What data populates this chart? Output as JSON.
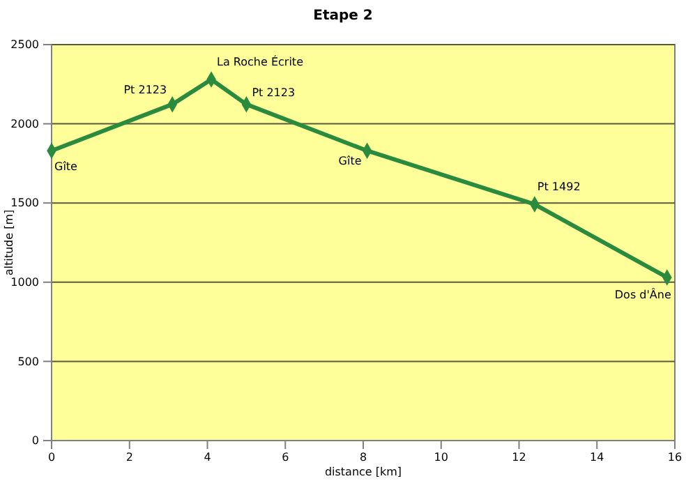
{
  "chart_data": {
    "type": "line",
    "title": "Etape 2",
    "xlabel": "distance [km]",
    "ylabel": "altitude [m]",
    "x": [
      0,
      3.1,
      4.1,
      5.0,
      8.1,
      12.4,
      15.8
    ],
    "series": [
      {
        "color": "#2a8a3e",
        "values": [
          1830,
          2123,
          2280,
          2123,
          1830,
          1492,
          1030
        ]
      }
    ],
    "xlim": [
      0,
      16
    ],
    "xticks": [
      0,
      2,
      4,
      6,
      8,
      10,
      12,
      14,
      16
    ],
    "ylim": [
      0,
      2500
    ],
    "yticks": [
      0,
      500,
      1000,
      1500,
      2000,
      2500
    ],
    "grid": "y",
    "marker": "diamond",
    "line_style": "solid",
    "annotations": [
      {
        "text": "Gîte",
        "x": 0,
        "y": 1830
      },
      {
        "text": "Pt 2123",
        "x": 3.1,
        "y": 2123
      },
      {
        "text": "La Roche Écrite",
        "x": 4.1,
        "y": 2280
      },
      {
        "text": "Pt 2123",
        "x": 5.0,
        "y": 2123
      },
      {
        "text": "Gîte",
        "x": 8.1,
        "y": 1830
      },
      {
        "text": "Pt 1492",
        "x": 12.4,
        "y": 1492
      },
      {
        "text": "Dos d'Âne",
        "x": 15.8,
        "y": 1030
      }
    ]
  }
}
